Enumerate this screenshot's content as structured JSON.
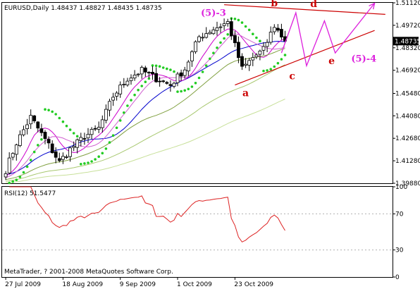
{
  "chart_data": {
    "type": "candlestick",
    "main_panel": {
      "header": "EURUSD,Daily  1.48437 1.48827 1.48435 1.48735",
      "current_price_label": "1.48735",
      "current_price": 1.48735,
      "ylim": [
        1.3988,
        1.5112
      ],
      "y_ticks": [
        "1.51120",
        "1.49720",
        "1.48320",
        "1.46920",
        "1.45480",
        "1.44080",
        "1.42680",
        "1.41280",
        "1.39880"
      ],
      "x_ticks": [
        "27 Jul 2009",
        "18 Aug 2009",
        "9 Sep 2009",
        "1 Oct 2009",
        "23 Oct 2009"
      ],
      "x_tick_bar_index": [
        0,
        16,
        32,
        48,
        64
      ],
      "bar_count": 79,
      "anchors": [
        {
          "i": 0,
          "close": 1.407
        },
        {
          "i": 3,
          "close": 1.424
        },
        {
          "i": 7,
          "close": 1.44
        },
        {
          "i": 11,
          "close": 1.426
        },
        {
          "i": 15,
          "close": 1.412
        },
        {
          "i": 18,
          "close": 1.42
        },
        {
          "i": 22,
          "close": 1.428
        },
        {
          "i": 26,
          "close": 1.433
        },
        {
          "i": 30,
          "close": 1.453
        },
        {
          "i": 34,
          "close": 1.464
        },
        {
          "i": 38,
          "close": 1.469
        },
        {
          "i": 42,
          "close": 1.464
        },
        {
          "i": 46,
          "close": 1.46
        },
        {
          "i": 50,
          "close": 1.47
        },
        {
          "i": 54,
          "close": 1.49
        },
        {
          "i": 58,
          "close": 1.495
        },
        {
          "i": 62,
          "close": 1.499
        },
        {
          "i": 66,
          "close": 1.47
        },
        {
          "i": 69,
          "close": 1.477
        },
        {
          "i": 72,
          "close": 1.482
        },
        {
          "i": 75,
          "close": 1.497
        },
        {
          "i": 78,
          "close": 1.4873
        }
      ],
      "moving_averages": [
        {
          "color": "#0000cc",
          "period": 21
        },
        {
          "color": "#cc00cc",
          "period": 8
        },
        {
          "color": "#d060d0",
          "period": 13
        },
        {
          "color": "#80a040",
          "period": 34
        },
        {
          "color": "#a8c870",
          "period": 55
        },
        {
          "color": "#c8e09a",
          "period": 89
        }
      ],
      "parabolic_sar_color": "#22cc22",
      "annotations": [
        {
          "text": "(5)-3",
          "color": "#dd22dd",
          "price": 1.503,
          "bar": 58
        },
        {
          "text": "b",
          "color": "#cc0000",
          "price": 1.509,
          "bar": 75
        },
        {
          "text": "d",
          "color": "#cc0000",
          "price": 1.5085,
          "bar": 86
        },
        {
          "text": "(5)-4",
          "color": "#dd22dd",
          "price": 1.4745,
          "bar": 100
        },
        {
          "text": "e",
          "color": "#cc0000",
          "price": 1.473,
          "bar": 91
        },
        {
          "text": "c",
          "color": "#cc0000",
          "price": 1.4635,
          "bar": 80
        },
        {
          "text": "a",
          "color": "#cc0000",
          "price": 1.453,
          "bar": 67
        }
      ],
      "trendlines": [
        {
          "color": "#cc0000",
          "from": {
            "bar": 61,
            "price": 1.51
          },
          "to": {
            "bar": 106,
            "price": 1.504
          }
        },
        {
          "color": "#cc0000",
          "from": {
            "bar": 64,
            "price": 1.46
          },
          "to": {
            "bar": 103,
            "price": 1.494
          }
        }
      ],
      "projection": {
        "color": "#dd22dd",
        "points": [
          {
            "bar": 77,
            "price": 1.48
          },
          {
            "bar": 81,
            "price": 1.505
          },
          {
            "bar": 84,
            "price": 1.472
          },
          {
            "bar": 89,
            "price": 1.5
          },
          {
            "bar": 92,
            "price": 1.48
          },
          {
            "bar": 103,
            "price": 1.511
          }
        ]
      }
    },
    "rsi_panel": {
      "header": "RSI(12) 51.5477",
      "period": 12,
      "value": 51.5477,
      "ylim": [
        0,
        100
      ],
      "y_ticks": [
        "100",
        "70",
        "30",
        "0"
      ],
      "line_color": "#dd2222"
    },
    "x_range_bars": [
      -1,
      108
    ],
    "footer": "MetaTrader, ? 2001-2008 MetaQuotes Software Corp."
  }
}
